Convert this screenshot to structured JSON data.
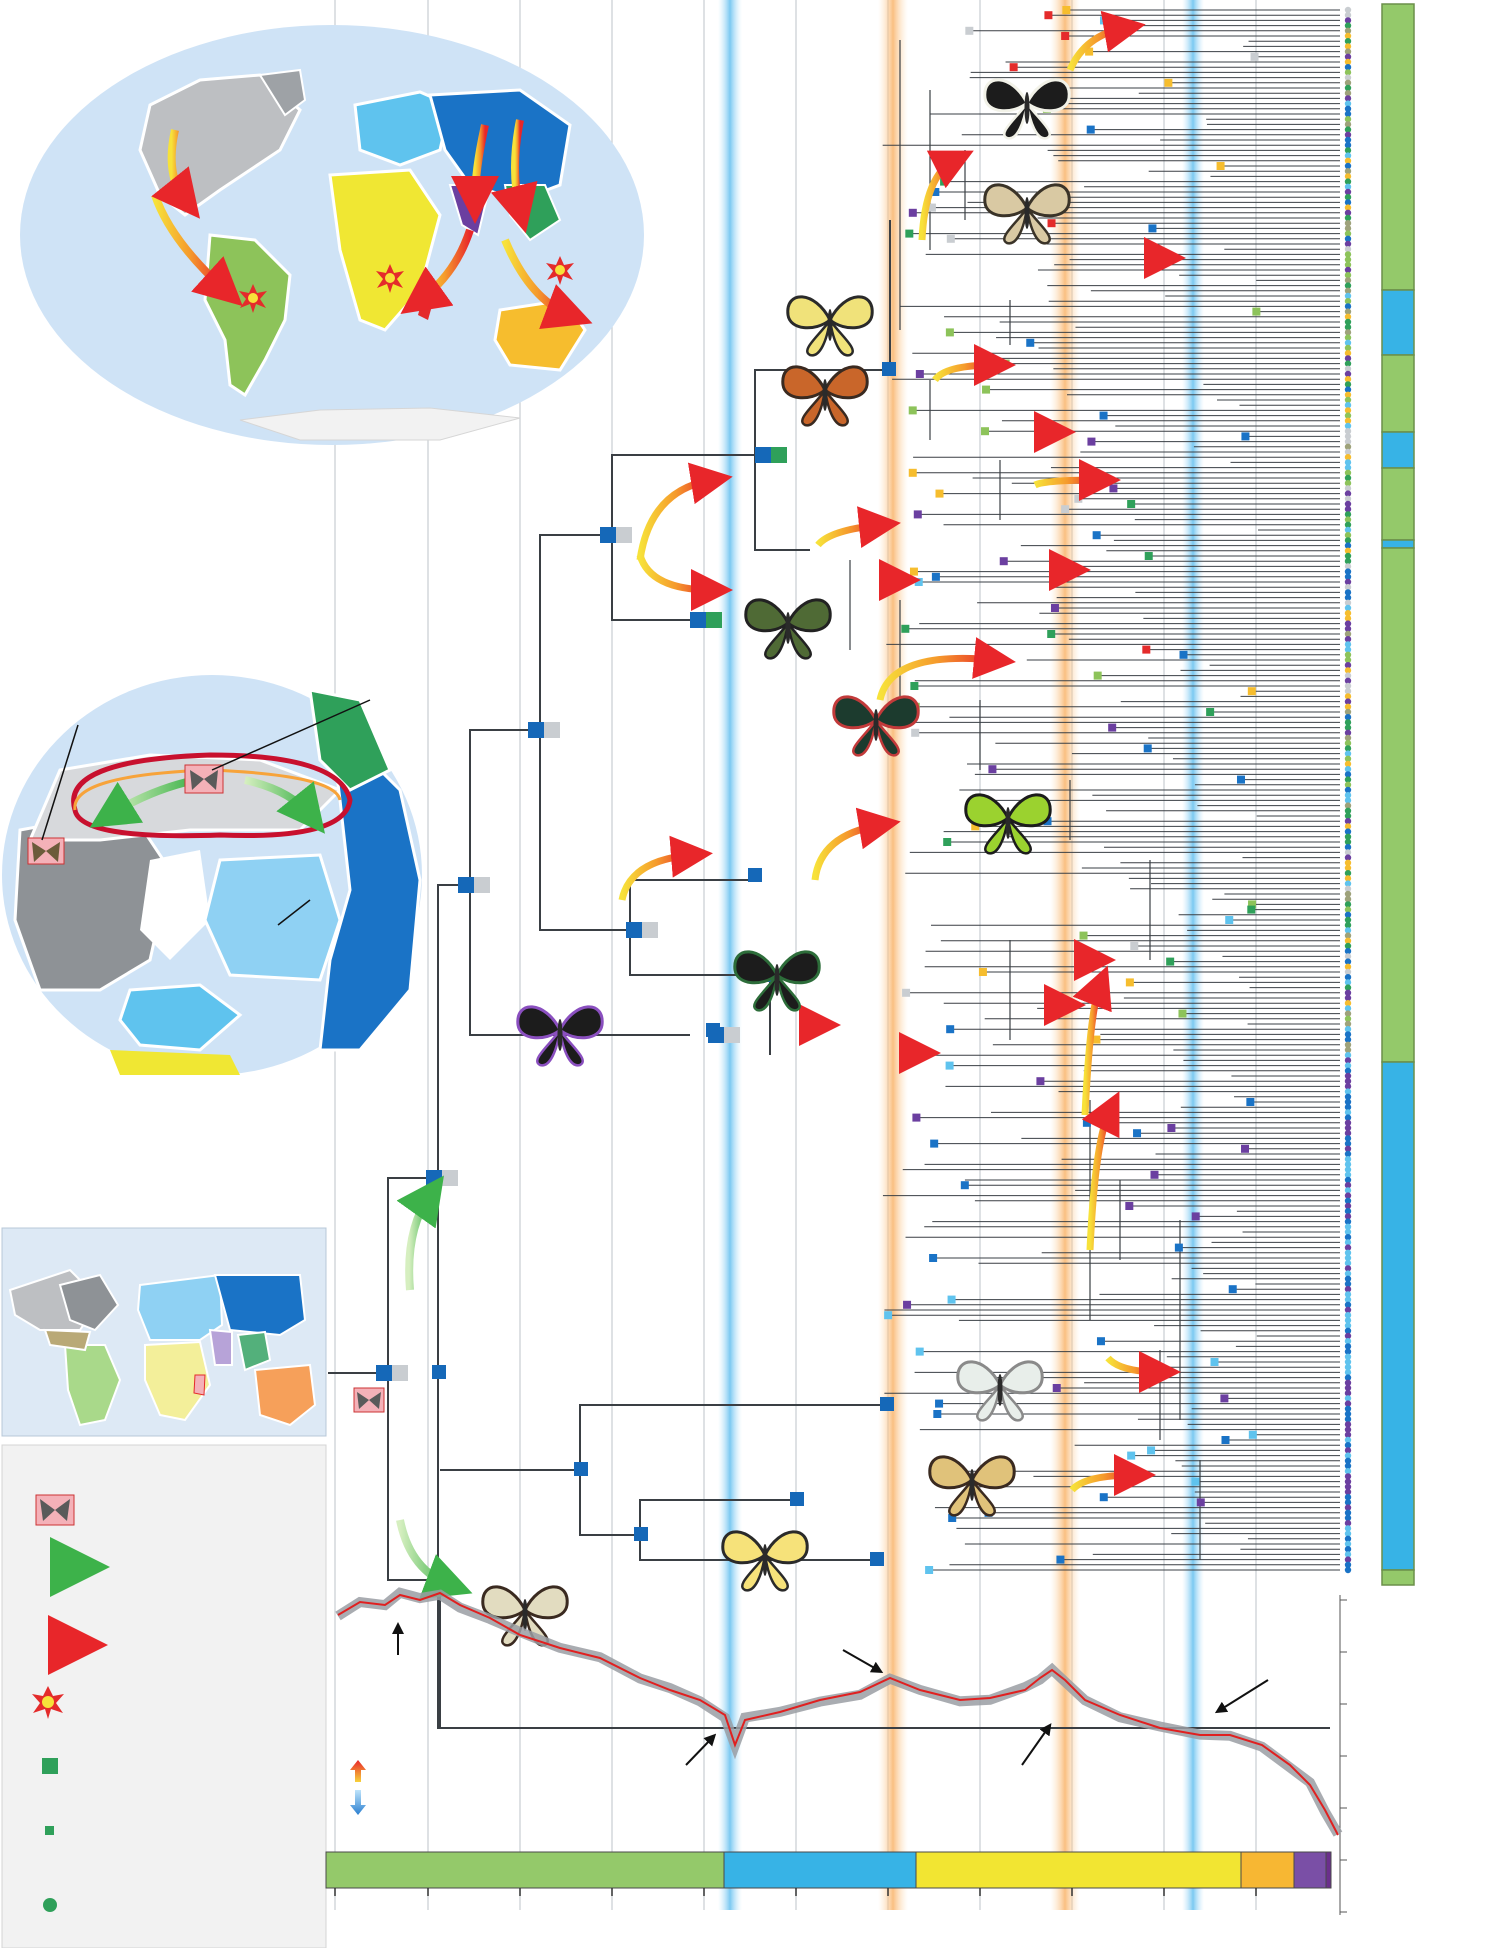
{
  "colors": {
    "stage_green": "#94c96a",
    "stage_blue": "#37b3e6",
    "stage_yellow": "#f2e532",
    "stage_orange": "#f7b733",
    "stage_purple": "#7a4fa6",
    "stage_dark_purple": "#6b2f8c",
    "node_blue": "#1568b8",
    "node_grey": "#c9cdd1",
    "node_green": "#2fa05a",
    "band_blue": "#7fcaf2",
    "band_orange": "#f9c98a",
    "curve_red": "#e02020",
    "curve_grey": "#9a9ea3",
    "globe_bg": "#cfe3f6",
    "branch": "#3a3f44"
  },
  "icons": {
    "ancestor": "butterfly-ancestor-icon",
    "dispersal": "green-arrow-icon",
    "shift": "orange-arrow-icon",
    "extinction": "explosion-icon",
    "large_node": "green-square-icon",
    "small_node": "small-square-icon",
    "tip": "green-dot-icon",
    "rate": "up-down-arrow-icon"
  },
  "legend": [
    "ancestor",
    "dispersal",
    "shift",
    "extinction",
    "large_node",
    "small_node",
    "tip"
  ],
  "timescale": [
    {
      "stage": "green",
      "color": "#94c96a"
    },
    {
      "stage": "blue",
      "color": "#37b3e6"
    },
    {
      "stage": "yellow",
      "color": "#f2e532"
    },
    {
      "stage": "orange",
      "color": "#f7b733"
    },
    {
      "stage": "purple",
      "color": "#7a4fa6"
    },
    {
      "stage": "dark-purple",
      "color": "#6b2f8c"
    }
  ],
  "clade_bar": [
    {
      "color": "#94c96a"
    },
    {
      "color": "#37b3e6"
    },
    {
      "color": "#94c96a"
    },
    {
      "color": "#37b3e6"
    },
    {
      "color": "#94c96a"
    },
    {
      "color": "#37b3e6"
    },
    {
      "color": "#94c96a"
    },
    {
      "color": "#37b3e6"
    },
    {
      "color": "#94c96a"
    }
  ]
}
